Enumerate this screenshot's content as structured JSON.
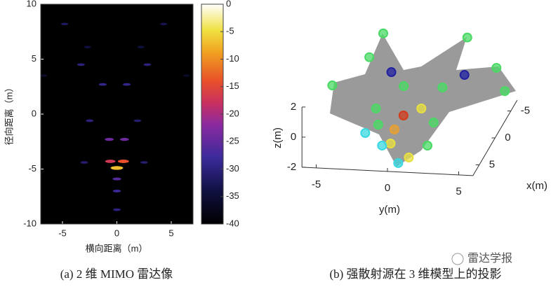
{
  "chart_data": [
    {
      "type": "heatmap",
      "xlabel": "横向距离（m）",
      "ylabel": "径向距离（m）",
      "xlim": [
        -7,
        7
      ],
      "ylim": [
        -10,
        10
      ],
      "xticks": [
        -5,
        0,
        5
      ],
      "yticks": [
        -10,
        -5,
        0,
        5,
        10
      ],
      "clim": [
        -40,
        0
      ],
      "cticks": [
        0,
        -5,
        -10,
        -15,
        -20,
        -25,
        -30,
        -35,
        -40
      ],
      "x": [
        -4.8,
        4.3,
        -2.7,
        2.2,
        -3.3,
        2.8,
        -1.3,
        0.9,
        -2.5,
        1.9,
        -6.7,
        6.4,
        -0.7,
        0.7,
        -0.6,
        0.6,
        0,
        -3,
        2.5,
        0,
        0,
        0
      ],
      "y": [
        8.2,
        8.2,
        6.1,
        6.1,
        4.5,
        4.5,
        2.7,
        2.7,
        -0.6,
        -0.6,
        3.5,
        3.5,
        -2.3,
        -2.3,
        -4.3,
        -4.3,
        -4.9,
        -4.4,
        -4.4,
        -5.9,
        -7,
        -8.7
      ],
      "values": [
        -32,
        -33,
        -34,
        -34,
        -30,
        -30,
        -29,
        -29,
        -30,
        -31,
        -36,
        -36,
        -24,
        -24,
        -17,
        -14,
        -7,
        -31,
        -31,
        -26,
        -28,
        -30
      ]
    },
    {
      "type": "scatter3d",
      "xlabel": "x(m)",
      "ylabel": "y(m)",
      "zlabel": "z(m)",
      "xlim": [
        -7,
        7
      ],
      "ylim": [
        -6,
        6
      ],
      "zlim": [
        -2,
        2
      ],
      "xticks": [
        -5,
        0,
        5
      ],
      "yticks": [
        -5,
        0,
        5
      ],
      "zticks": [
        -2,
        0,
        2
      ],
      "x": [
        -7,
        -7,
        -2.6,
        -3.1,
        -5.3,
        -4.5,
        -3.1,
        -3.2,
        1.18,
        0.78,
        2.2,
        4.8,
        4.65,
        4.7,
        5.1,
        5.4,
        4.3,
        4.07,
        3.2,
        -4.16,
        -4.3,
        2.98
      ],
      "y": [
        -3.4,
        2.5,
        -6,
        6,
        -4,
        5.1,
        -1.1,
        1.6,
        -2.1,
        1.0,
        0.06,
        0,
        -0.3,
        2.3,
        -0.8,
        0.4,
        0.9,
        -1.3,
        2.4,
        -2.2,
        2.9,
        -2.45
      ],
      "z": [
        2,
        2,
        0,
        0,
        1,
        1,
        0,
        0,
        0,
        0,
        0,
        0,
        -1,
        -1,
        -1,
        -2,
        -2,
        0,
        0,
        0.5,
        0.5,
        -1
      ],
      "colors": [
        "#4ad964",
        "#4ad964",
        "#4ad964",
        "#4ad964",
        "#4ad964",
        "#4ad964",
        "#4ad964",
        "#4ad964",
        "#4ad964",
        "#e8e040",
        "#d23b1c",
        "#e8a030",
        "#e8e040",
        "#4ad964",
        "#3ad8e0",
        "#3ad8e0",
        "#e8e040",
        "#4ad964",
        "#4ad964",
        "#2020a0",
        "#2020a0",
        "#3ad8e0"
      ]
    }
  ],
  "captions": [
    "(a) 2 维 MIMO 雷达像",
    "(b) 强散射源在 3 维模型上的投影"
  ],
  "watermark": "雷达学报"
}
